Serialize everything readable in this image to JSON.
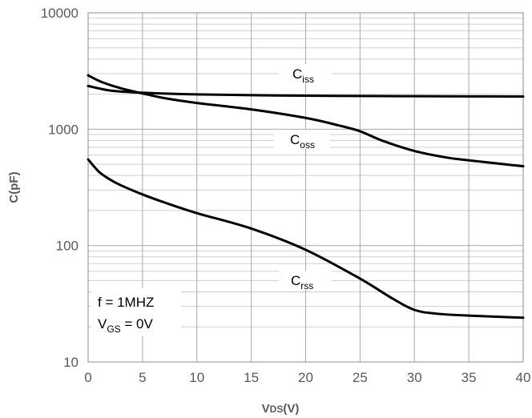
{
  "chart_data": {
    "type": "line",
    "title": "",
    "xlabel": "V",
    "xlabel_sub": "DS",
    "xlabel_suffix": "(V)",
    "ylabel": "C(pF)",
    "xlim": [
      0,
      40
    ],
    "ylim": [
      10,
      10000
    ],
    "yscale": "log",
    "grid": true,
    "xticks": [
      0,
      5,
      10,
      15,
      20,
      25,
      30,
      35,
      40
    ],
    "xtick_labels": [
      "0",
      "5",
      "10",
      "15",
      "20",
      "25",
      "30",
      "35",
      "40"
    ],
    "yticks": [
      10,
      100,
      1000,
      10000
    ],
    "ytick_labels": [
      "10",
      "100",
      "1000",
      "10000"
    ],
    "series": [
      {
        "name": "Ciss",
        "label_main": "C",
        "label_sub": "iss",
        "x": [
          0,
          2,
          4,
          6,
          8,
          10,
          15,
          20,
          25,
          30,
          35,
          40
        ],
        "values": [
          2350,
          2150,
          2080,
          2040,
          2010,
          1990,
          1960,
          1940,
          1930,
          1920,
          1915,
          1910
        ]
      },
      {
        "name": "Coss",
        "label_main": "C",
        "label_sub": "oss",
        "x": [
          0,
          1,
          2,
          3,
          4,
          5,
          7,
          10,
          15,
          20,
          23,
          25,
          27,
          30,
          33,
          35,
          40
        ],
        "values": [
          2900,
          2600,
          2400,
          2250,
          2130,
          2030,
          1850,
          1680,
          1480,
          1250,
          1080,
          960,
          800,
          650,
          570,
          540,
          480
        ]
      },
      {
        "name": "Crss",
        "label_main": "C",
        "label_sub": "rss",
        "x": [
          0,
          1,
          2,
          3,
          5,
          7,
          10,
          15,
          20,
          25,
          28,
          30,
          32,
          35,
          40
        ],
        "values": [
          550,
          430,
          370,
          330,
          275,
          235,
          190,
          140,
          92,
          52,
          35,
          28,
          26,
          25,
          24
        ]
      }
    ],
    "annotations": {
      "frequency": "f = 1MHZ",
      "vgs_main": "V",
      "vgs_sub": "GS",
      "vgs_suffix": " = 0V"
    },
    "colors": {
      "line": "#000000",
      "text": "#595959"
    }
  }
}
